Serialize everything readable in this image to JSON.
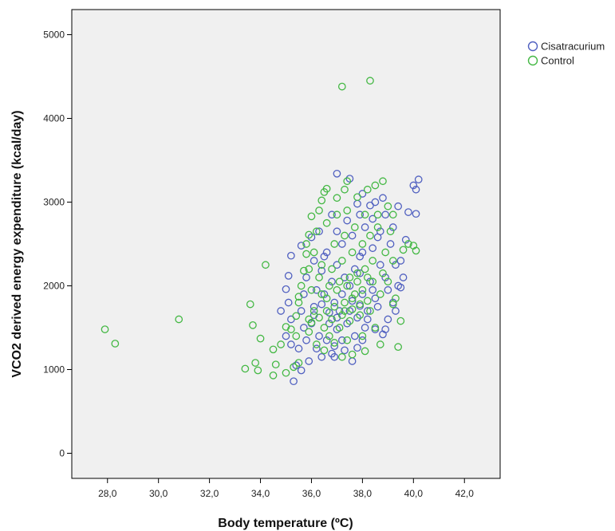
{
  "chart_data": {
    "type": "scatter",
    "title": "",
    "xlabel": "Body temperature (ºC)",
    "ylabel": "VCO2 derived energy expenditure (kcal/day)",
    "xlim": [
      26.6,
      43.4
    ],
    "ylim": [
      -300,
      5300
    ],
    "x_ticks": [
      "28,0",
      "30,0",
      "32,0",
      "34,0",
      "36,0",
      "38,0",
      "40,0",
      "42,0"
    ],
    "y_ticks": [
      "0",
      "1000",
      "2000",
      "3000",
      "4000",
      "5000"
    ],
    "plot_background": "#f0f0f0",
    "grid": false,
    "legend_position": "top-right",
    "marker": "open-circle",
    "series": [
      {
        "name": "Cisatracurium",
        "color": "#5060c0",
        "points": [
          [
            37.0,
            3340
          ],
          [
            37.5,
            3280
          ],
          [
            40.2,
            3270
          ],
          [
            40.0,
            3200
          ],
          [
            40.1,
            3150
          ],
          [
            39.8,
            2880
          ],
          [
            40.1,
            2860
          ],
          [
            39.4,
            2950
          ],
          [
            38.8,
            3050
          ],
          [
            38.5,
            3000
          ],
          [
            38.3,
            2960
          ],
          [
            38.9,
            2850
          ],
          [
            39.2,
            2700
          ],
          [
            39.5,
            2300
          ],
          [
            39.3,
            2250
          ],
          [
            39.4,
            2000
          ],
          [
            39.5,
            1980
          ],
          [
            39.2,
            1800
          ],
          [
            39.3,
            1700
          ],
          [
            39.0,
            1600
          ],
          [
            38.9,
            1480
          ],
          [
            38.8,
            1420
          ],
          [
            37.8,
            1260
          ],
          [
            37.3,
            1230
          ],
          [
            36.8,
            1190
          ],
          [
            36.4,
            1150
          ],
          [
            35.9,
            1100
          ],
          [
            35.4,
            1050
          ],
          [
            35.3,
            860
          ],
          [
            35.6,
            990
          ],
          [
            35.2,
            1300
          ],
          [
            35.0,
            1400
          ],
          [
            35.2,
            1600
          ],
          [
            35.1,
            1800
          ],
          [
            35.0,
            1960
          ],
          [
            35.1,
            2120
          ],
          [
            35.2,
            2360
          ],
          [
            35.6,
            2480
          ],
          [
            36.0,
            2580
          ],
          [
            36.3,
            2650
          ],
          [
            36.6,
            2400
          ],
          [
            37.2,
            2500
          ],
          [
            37.6,
            2600
          ],
          [
            38.1,
            2700
          ],
          [
            38.4,
            2450
          ],
          [
            38.6,
            2580
          ],
          [
            37.9,
            2350
          ],
          [
            37.0,
            2250
          ],
          [
            36.4,
            2180
          ],
          [
            36.2,
            1950
          ],
          [
            36.1,
            1750
          ],
          [
            36.0,
            1550
          ],
          [
            36.3,
            1400
          ],
          [
            36.6,
            1350
          ],
          [
            37.0,
            1480
          ],
          [
            37.4,
            1550
          ],
          [
            37.8,
            1620
          ],
          [
            38.2,
            1700
          ],
          [
            38.5,
            1850
          ],
          [
            38.3,
            2050
          ],
          [
            37.9,
            2150
          ],
          [
            37.5,
            2000
          ],
          [
            37.2,
            1900
          ],
          [
            36.9,
            1800
          ],
          [
            36.7,
            1680
          ],
          [
            37.1,
            1700
          ],
          [
            37.6,
            1820
          ],
          [
            38.0,
            1900
          ],
          [
            38.4,
            1950
          ],
          [
            36.5,
            1900
          ],
          [
            36.8,
            2050
          ],
          [
            37.3,
            2100
          ],
          [
            37.7,
            2200
          ],
          [
            38.0,
            2400
          ],
          [
            38.7,
            2250
          ],
          [
            38.9,
            2100
          ],
          [
            39.0,
            1950
          ],
          [
            38.6,
            1750
          ],
          [
            38.1,
            1500
          ],
          [
            37.7,
            1400
          ],
          [
            37.2,
            1350
          ],
          [
            36.9,
            1280
          ],
          [
            36.2,
            1250
          ],
          [
            35.8,
            1350
          ],
          [
            35.7,
            1500
          ],
          [
            35.6,
            1700
          ],
          [
            35.7,
            1900
          ],
          [
            35.8,
            2100
          ],
          [
            36.1,
            2300
          ],
          [
            36.5,
            2350
          ],
          [
            37.0,
            2650
          ],
          [
            37.4,
            2780
          ],
          [
            37.9,
            2850
          ],
          [
            38.4,
            2800
          ],
          [
            38.7,
            2650
          ],
          [
            39.1,
            2500
          ],
          [
            36.7,
            1550
          ],
          [
            37.0,
            1620
          ],
          [
            37.5,
            1700
          ],
          [
            37.9,
            1760
          ],
          [
            38.2,
            1600
          ],
          [
            36.4,
            1780
          ],
          [
            36.1,
            1650
          ],
          [
            35.5,
            1250
          ],
          [
            34.8,
            1700
          ],
          [
            36.9,
            1150
          ],
          [
            37.6,
            1100
          ],
          [
            38.0,
            1350
          ],
          [
            38.5,
            1480
          ],
          [
            39.6,
            2100
          ],
          [
            39.7,
            2550
          ],
          [
            38.0,
            3100
          ],
          [
            37.8,
            2980
          ],
          [
            36.8,
            2850
          ]
        ]
      },
      {
        "name": "Control",
        "color": "#44b844",
        "points": [
          [
            37.2,
            4380
          ],
          [
            38.3,
            4450
          ],
          [
            27.9,
            1480
          ],
          [
            28.3,
            1310
          ],
          [
            30.8,
            1600
          ],
          [
            33.4,
            1010
          ],
          [
            33.8,
            1080
          ],
          [
            33.9,
            990
          ],
          [
            33.6,
            1780
          ],
          [
            33.7,
            1530
          ],
          [
            34.0,
            1370
          ],
          [
            34.2,
            2250
          ],
          [
            34.5,
            1240
          ],
          [
            34.6,
            1060
          ],
          [
            34.5,
            930
          ],
          [
            35.0,
            960
          ],
          [
            35.3,
            1030
          ],
          [
            35.5,
            1080
          ],
          [
            34.8,
            1300
          ],
          [
            35.0,
            1510
          ],
          [
            35.2,
            1480
          ],
          [
            35.4,
            1640
          ],
          [
            35.5,
            1870
          ],
          [
            35.7,
            2180
          ],
          [
            35.8,
            2380
          ],
          [
            35.9,
            2610
          ],
          [
            36.0,
            2830
          ],
          [
            36.4,
            3020
          ],
          [
            36.5,
            3120
          ],
          [
            36.6,
            3160
          ],
          [
            37.0,
            3050
          ],
          [
            37.3,
            3150
          ],
          [
            37.4,
            3250
          ],
          [
            37.8,
            3060
          ],
          [
            38.2,
            3150
          ],
          [
            38.5,
            3200
          ],
          [
            39.0,
            2950
          ],
          [
            39.2,
            2850
          ],
          [
            38.8,
            3250
          ],
          [
            39.6,
            2430
          ],
          [
            40.0,
            2480
          ],
          [
            40.1,
            2420
          ],
          [
            39.8,
            2500
          ],
          [
            39.5,
            1580
          ],
          [
            39.4,
            1270
          ],
          [
            38.7,
            1300
          ],
          [
            38.1,
            1220
          ],
          [
            37.6,
            1180
          ],
          [
            37.2,
            1150
          ],
          [
            36.5,
            1230
          ],
          [
            36.2,
            1300
          ],
          [
            35.9,
            1450
          ],
          [
            36.0,
            1560
          ],
          [
            36.3,
            1620
          ],
          [
            36.6,
            1700
          ],
          [
            36.9,
            1750
          ],
          [
            37.3,
            1800
          ],
          [
            37.6,
            1850
          ],
          [
            37.9,
            1780
          ],
          [
            38.2,
            1820
          ],
          [
            36.4,
            1900
          ],
          [
            36.7,
            2000
          ],
          [
            37.1,
            2050
          ],
          [
            37.5,
            2100
          ],
          [
            37.8,
            2150
          ],
          [
            38.1,
            2200
          ],
          [
            38.4,
            2300
          ],
          [
            36.3,
            2100
          ],
          [
            36.8,
            2200
          ],
          [
            37.2,
            2300
          ],
          [
            37.6,
            2400
          ],
          [
            38.0,
            2500
          ],
          [
            38.3,
            2600
          ],
          [
            38.6,
            2700
          ],
          [
            36.9,
            2500
          ],
          [
            37.3,
            2600
          ],
          [
            37.7,
            2700
          ],
          [
            38.1,
            2850
          ],
          [
            37.0,
            2850
          ],
          [
            36.6,
            2750
          ],
          [
            36.2,
            2650
          ],
          [
            35.8,
            2500
          ],
          [
            36.1,
            2400
          ],
          [
            36.4,
            2250
          ],
          [
            35.6,
            2000
          ],
          [
            35.5,
            1800
          ],
          [
            35.9,
            1600
          ],
          [
            36.7,
            1400
          ],
          [
            37.1,
            1500
          ],
          [
            37.5,
            1580
          ],
          [
            37.9,
            1650
          ],
          [
            38.3,
            1700
          ],
          [
            38.7,
            1900
          ],
          [
            39.0,
            2050
          ],
          [
            39.2,
            2300
          ],
          [
            38.9,
            2400
          ],
          [
            38.5,
            1500
          ],
          [
            38.0,
            1400
          ],
          [
            37.4,
            1350
          ],
          [
            36.9,
            1320
          ],
          [
            36.5,
            1500
          ],
          [
            36.8,
            1600
          ],
          [
            37.2,
            1650
          ],
          [
            37.6,
            1720
          ],
          [
            38.0,
            1950
          ],
          [
            38.4,
            2050
          ],
          [
            38.8,
            2150
          ],
          [
            39.1,
            2650
          ],
          [
            37.4,
            2900
          ],
          [
            36.3,
            2900
          ],
          [
            35.9,
            2200
          ],
          [
            36.1,
            1700
          ],
          [
            36.6,
            1850
          ],
          [
            37.0,
            1950
          ],
          [
            37.4,
            2000
          ],
          [
            37.8,
            2050
          ],
          [
            38.2,
            2100
          ],
          [
            36.0,
            1950
          ],
          [
            35.4,
            1400
          ],
          [
            39.3,
            1850
          ],
          [
            39.2,
            1780
          ],
          [
            38.6,
            2850
          ],
          [
            37.3,
            1700
          ],
          [
            37.7,
            1900
          ]
        ]
      }
    ]
  }
}
